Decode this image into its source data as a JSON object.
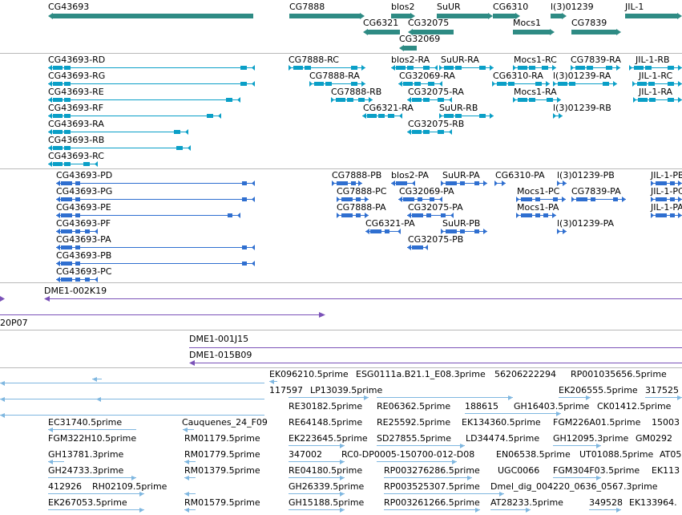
{
  "colors": {
    "gene": "#2e8b84",
    "gene_light": "#3aa6a0",
    "transcript_rna": "#0a9fc7",
    "transcript_protein": "#2f6fd0",
    "clone": "#7b52b8",
    "est": "#7fb7e0",
    "separator": "#b9b9b9"
  },
  "tracks": {
    "genes": [
      "CG43693",
      "CG7888",
      "blos2",
      "SuUR",
      "CG6310",
      "l(3)01239",
      "JIL-1",
      "CG6321",
      "CG32075",
      "Mocs1",
      "CG7839",
      "CG32069"
    ],
    "transcripts": [
      "CG43693-RD",
      "CG7888-RC",
      "blos2-RA",
      "SuUR-RA",
      "Mocs1-RC",
      "CG7839-RA",
      "JIL-1-RB",
      "CG43693-RG",
      "CG7888-RA",
      "CG32069-RA",
      "CG6310-RA",
      "l(3)01239-RA",
      "JIL-1-RC",
      "CG43693-RE",
      "CG7888-RB",
      "CG32075-RA",
      "Mocs1-RA",
      "JIL-1-RA",
      "CG43693-RF",
      "CG6321-RA",
      "SuUR-RB",
      "l(3)01239-RB",
      "CG43693-RA",
      "CG32075-RB",
      "CG43693-RB",
      "CG43693-RC"
    ],
    "proteins": [
      "CG43693-PD",
      "CG7888-PB",
      "blos2-PA",
      "SuUR-PA",
      "CG6310-PA",
      "l(3)01239-PB",
      "JIL-1-PB",
      "CG43693-PG",
      "CG7888-PC",
      "CG32069-PA",
      "Mocs1-PC",
      "CG7839-PA",
      "JIL-1-PC",
      "CG43693-PE",
      "CG7888-PA",
      "CG32075-PA",
      "Mocs1-PA",
      "JIL-1-PA",
      "CG43693-PF",
      "CG6321-PA",
      "SuUR-PB",
      "l(3)01239-PA",
      "CG43693-PA",
      "CG32075-PB",
      "CG43693-PB",
      "CG43693-PC"
    ],
    "clones_a": [
      "DME1-002K19",
      "20P07"
    ],
    "clones_b": [
      "DME1-001J15",
      "DME1-015B09"
    ],
    "ests": [
      "EK096210.5prime",
      "ESG0111a.B21.1_E08.3prime",
      "56206222294",
      "RP001035656.5prime",
      "117597",
      "LP13039.5prime",
      "EK206555.5prime",
      "317525",
      "RE30182.5prime",
      "RE06362.5prime",
      "188615",
      "GH16403.5prime",
      "CK01412.5prime",
      "EC31740.5prime",
      "Cauquenes_24_F09",
      "RE64148.5prime",
      "RE25592.5prime",
      "EK134360.5prime",
      "FGM226A01.5prime",
      "15003",
      "FGM322H10.5prime",
      "RM01179.5prime",
      "EK223645.5prime",
      "SD27855.5prime",
      "LD34474.5prime",
      "GH12095.3prime",
      "GM0292",
      "GH13781.3prime",
      "RM01779.5prime",
      "347002",
      "RC0-DP0005-150700-012-D08",
      "EN06538.5prime",
      "UT01088.5prime",
      "AT05",
      "GH24733.3prime",
      "RM01379.5prime",
      "RE04180.5prime",
      "RP003276286.5prime",
      "UGC0066",
      "FGM304F03.5prime",
      "EK113",
      "412926",
      "RH02109.5prime",
      "GH26339.5prime",
      "RP003525307.5prime",
      "Dmel_dig_004220_0636_0567.3prime",
      "EK267053.5prime",
      "RM01579.5prime",
      "GH15188.5prime",
      "RP003261266.5prime",
      "AT28233.5prime",
      "349528",
      "EK133964."
    ]
  }
}
